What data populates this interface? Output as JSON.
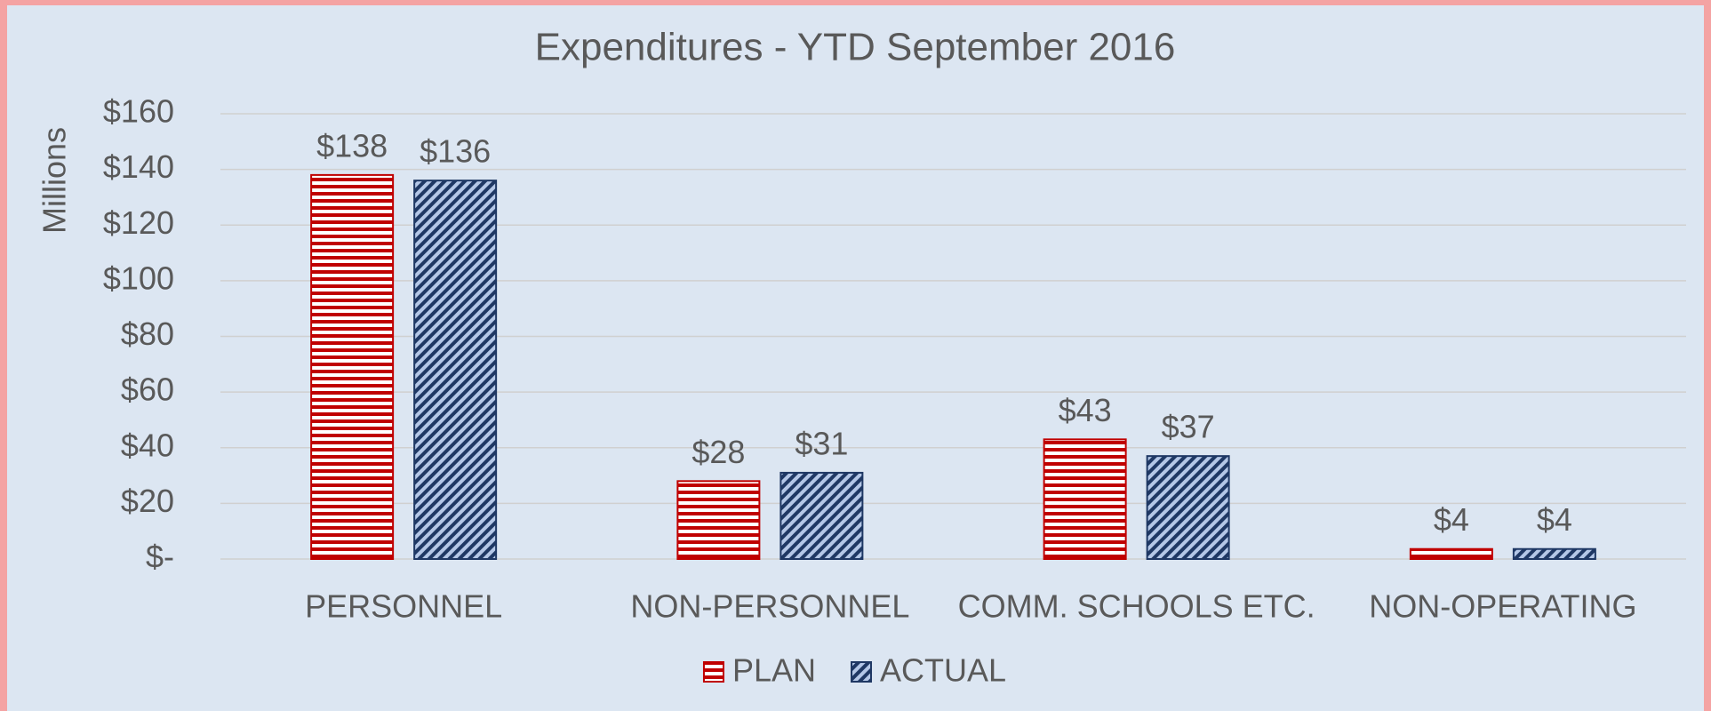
{
  "chart_data": {
    "type": "bar",
    "title": "Expenditures - YTD September 2016",
    "y_label": "Millions",
    "categories": [
      "PERSONNEL",
      "NON-PERSONNEL",
      "COMM. SCHOOLS ETC.",
      "NON-OPERATING"
    ],
    "series": [
      {
        "name": "PLAN",
        "color": "#c00000",
        "values": [
          138,
          28,
          43,
          3.6
        ],
        "value_labels": [
          "$138",
          "$28",
          "$43",
          "$4"
        ]
      },
      {
        "name": "ACTUAL",
        "color": "#1f3864",
        "values": [
          136,
          31,
          37,
          3.6
        ],
        "value_labels": [
          "$136",
          "$31",
          "$37",
          "$4"
        ]
      }
    ],
    "ylim": [
      0,
      160
    ],
    "yticks": [
      {
        "value": 0,
        "label": "$-"
      },
      {
        "value": 20,
        "label": "$20"
      },
      {
        "value": 40,
        "label": "$40"
      },
      {
        "value": 60,
        "label": "$60"
      },
      {
        "value": 80,
        "label": "$80"
      },
      {
        "value": 100,
        "label": "$100"
      },
      {
        "value": 120,
        "label": "$120"
      },
      {
        "value": 140,
        "label": "$140"
      },
      {
        "value": 160,
        "label": "$160"
      }
    ],
    "grid": true,
    "legend": "bottom"
  }
}
